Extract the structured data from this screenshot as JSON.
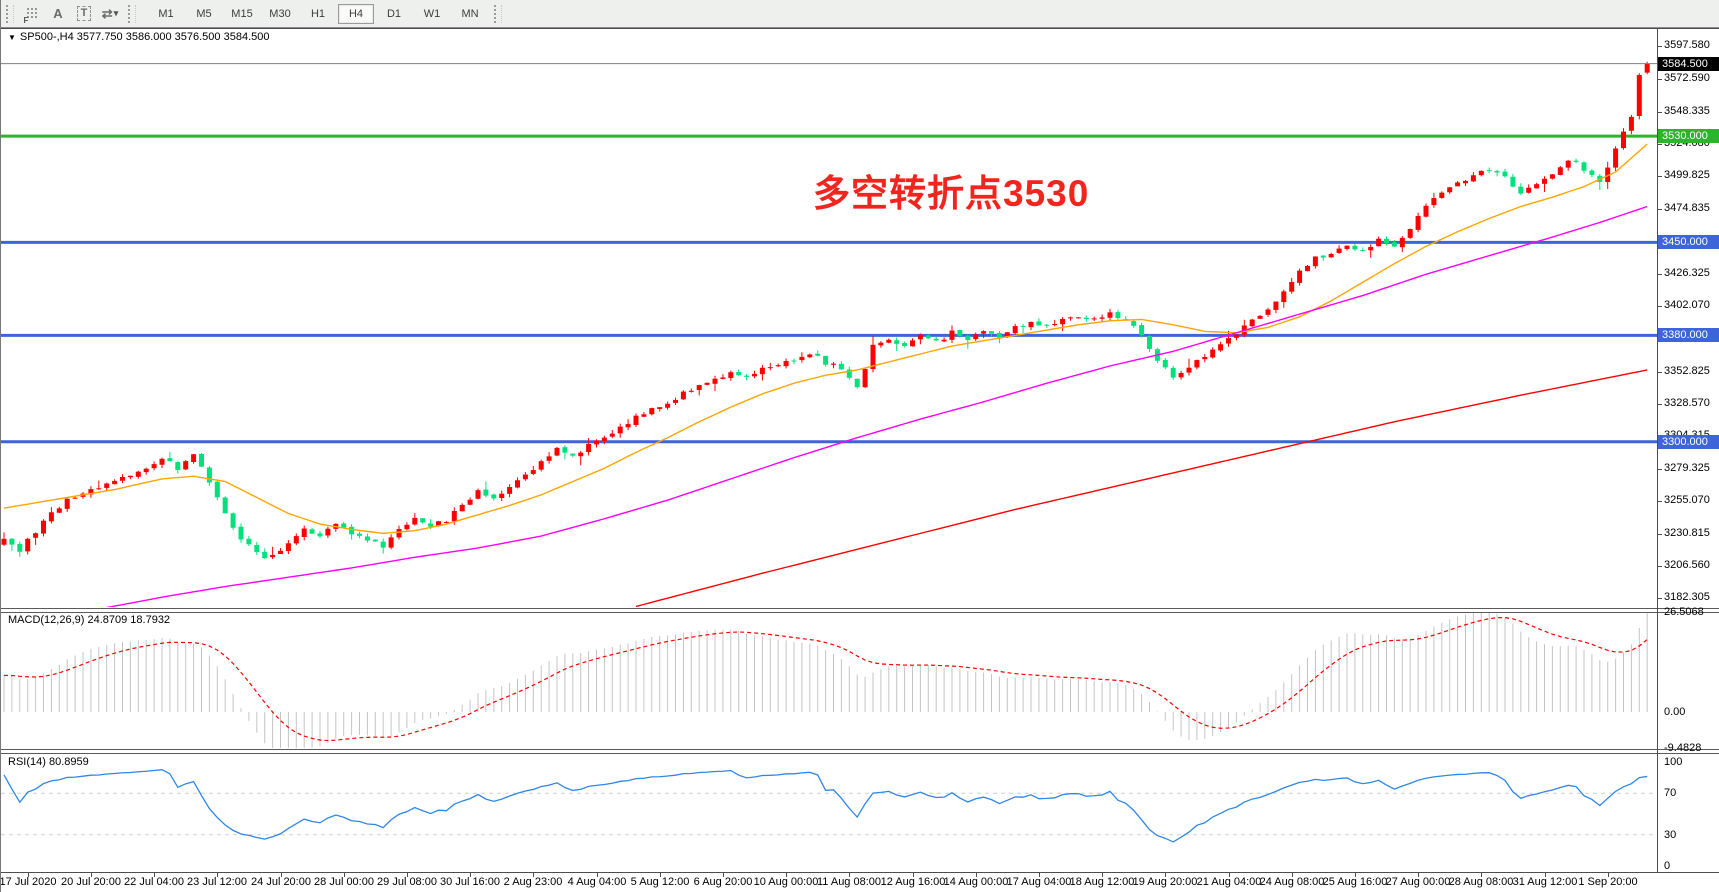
{
  "toolbar": {
    "timeframes": [
      "M1",
      "M5",
      "M15",
      "M30",
      "H1",
      "H4",
      "D1",
      "W1",
      "MN"
    ],
    "active_timeframe": "H4",
    "icons": {
      "grid_f": "F",
      "arrow_tool": "A",
      "text_tool": "T",
      "indicator_arrows": "⇄",
      "caret": "▾"
    }
  },
  "symbol_line": {
    "caret": "▼",
    "text": "SP500-,H4  3577.750 3586.000 3576.500 3584.500"
  },
  "annotation": {
    "text": "多空转折点3530",
    "color": "#f2241e"
  },
  "indicator_macd": {
    "label": "MACD(12,26,9) 24.8709 18.7932"
  },
  "indicator_rsi": {
    "label": "RSI(14) 80.8959"
  },
  "chart_data": {
    "type": "candlestick",
    "symbol": "SP500-",
    "timeframe": "H4",
    "current_bar": {
      "open": 3577.75,
      "high": 3586.0,
      "low": 3576.5,
      "close": 3584.5
    },
    "bars_total": 209,
    "colors": {
      "bull": "#fe0000",
      "bear": "#00e17c",
      "ma_fast": "#ffa500",
      "ma_mid": "#ff00ff",
      "ma_slow": "#ff0000",
      "macd_hist": "#c4c4c4",
      "macd_signal": "#ff0000",
      "rsi": "#2e86e8",
      "hline_blue": "#3d64d8",
      "hline_green": "#2cb52c",
      "bid_line": "#808080",
      "level_dash": "#cfcfcf"
    },
    "price_axis": {
      "range_top": 3610.59,
      "range_bottom": 3175.59,
      "ticks": [
        3597.58,
        3572.59,
        3548.335,
        3524.08,
        3499.825,
        3474.835,
        3426.325,
        3402.07,
        3377.815,
        3352.825,
        3328.57,
        3304.315,
        3279.325,
        3255.07,
        3230.815,
        3206.56,
        3182.305
      ]
    },
    "hlines": [
      {
        "name": "bid-line",
        "value": 3584.5,
        "label": "3584.500",
        "color": "#808080",
        "width": 1,
        "badge_bg": "#000000"
      },
      {
        "name": "pivot-line-3530",
        "value": 3530,
        "label": "3530.000",
        "color": "#2cb52c",
        "width": 3,
        "badge_bg": "#2cb52c"
      },
      {
        "name": "level-line-3450",
        "value": 3450,
        "label": "3450.000",
        "color": "#3d64d8",
        "width": 3,
        "badge_bg": "#3d64d8"
      },
      {
        "name": "level-line-3380",
        "value": 3380,
        "label": "3380.000",
        "color": "#3d64d8",
        "width": 3,
        "badge_bg": "#3d64d8"
      },
      {
        "name": "level-line-3300",
        "value": 3300,
        "label": "3300.000",
        "color": "#3d64d8",
        "width": 3,
        "badge_bg": "#3d64d8"
      }
    ],
    "close_keyframes": [
      [
        0,
        3226
      ],
      [
        2,
        3218
      ],
      [
        5,
        3240
      ],
      [
        8,
        3256
      ],
      [
        11,
        3264
      ],
      [
        14,
        3272
      ],
      [
        17,
        3278
      ],
      [
        20,
        3288
      ],
      [
        22,
        3280
      ],
      [
        24,
        3291
      ],
      [
        26,
        3270
      ],
      [
        28,
        3245
      ],
      [
        30,
        3228
      ],
      [
        33,
        3211
      ],
      [
        36,
        3222
      ],
      [
        38,
        3235
      ],
      [
        40,
        3229
      ],
      [
        42,
        3238
      ],
      [
        44,
        3231
      ],
      [
        46,
        3227
      ],
      [
        48,
        3220
      ],
      [
        50,
        3234
      ],
      [
        52,
        3244
      ],
      [
        54,
        3236
      ],
      [
        56,
        3241
      ],
      [
        58,
        3252
      ],
      [
        60,
        3264
      ],
      [
        62,
        3257
      ],
      [
        64,
        3266
      ],
      [
        66,
        3276
      ],
      [
        68,
        3284
      ],
      [
        70,
        3294
      ],
      [
        72,
        3289
      ],
      [
        74,
        3298
      ],
      [
        76,
        3304
      ],
      [
        78,
        3310
      ],
      [
        80,
        3318
      ],
      [
        82,
        3324
      ],
      [
        84,
        3330
      ],
      [
        86,
        3336
      ],
      [
        88,
        3342
      ],
      [
        90,
        3346
      ],
      [
        92,
        3352
      ],
      [
        94,
        3347
      ],
      [
        96,
        3354
      ],
      [
        98,
        3358
      ],
      [
        100,
        3361
      ],
      [
        102,
        3367
      ],
      [
        104,
        3359
      ],
      [
        106,
        3356
      ],
      [
        108,
        3341
      ],
      [
        110,
        3372
      ],
      [
        112,
        3375
      ],
      [
        114,
        3371
      ],
      [
        116,
        3379
      ],
      [
        118,
        3375
      ],
      [
        120,
        3382
      ],
      [
        122,
        3377
      ],
      [
        124,
        3383
      ],
      [
        126,
        3379
      ],
      [
        128,
        3386
      ],
      [
        130,
        3390
      ],
      [
        132,
        3387
      ],
      [
        134,
        3392
      ],
      [
        136,
        3395
      ],
      [
        138,
        3393
      ],
      [
        140,
        3397
      ],
      [
        142,
        3391
      ],
      [
        144,
        3381
      ],
      [
        146,
        3362
      ],
      [
        148,
        3349
      ],
      [
        150,
        3356
      ],
      [
        152,
        3364
      ],
      [
        154,
        3373
      ],
      [
        156,
        3381
      ],
      [
        158,
        3391
      ],
      [
        160,
        3399
      ],
      [
        162,
        3413
      ],
      [
        164,
        3428
      ],
      [
        166,
        3438
      ],
      [
        168,
        3442
      ],
      [
        170,
        3447
      ],
      [
        172,
        3443
      ],
      [
        174,
        3452
      ],
      [
        176,
        3448
      ],
      [
        178,
        3461
      ],
      [
        180,
        3478
      ],
      [
        182,
        3489
      ],
      [
        184,
        3495
      ],
      [
        186,
        3501
      ],
      [
        188,
        3506
      ],
      [
        190,
        3498
      ],
      [
        192,
        3486
      ],
      [
        194,
        3495
      ],
      [
        196,
        3503
      ],
      [
        198,
        3513
      ],
      [
        200,
        3505
      ],
      [
        202,
        3496
      ],
      [
        203,
        3505
      ],
      [
        204,
        3520
      ],
      [
        205,
        3532
      ],
      [
        206,
        3545
      ],
      [
        207,
        3576
      ],
      [
        208,
        3584.5
      ]
    ],
    "ma_fast_keyframes": [
      [
        0,
        3250
      ],
      [
        8,
        3258
      ],
      [
        14,
        3264
      ],
      [
        20,
        3272
      ],
      [
        24,
        3274
      ],
      [
        28,
        3270
      ],
      [
        32,
        3258
      ],
      [
        36,
        3246
      ],
      [
        40,
        3238
      ],
      [
        44,
        3234
      ],
      [
        48,
        3231
      ],
      [
        52,
        3233
      ],
      [
        56,
        3238
      ],
      [
        60,
        3245
      ],
      [
        64,
        3252
      ],
      [
        68,
        3260
      ],
      [
        72,
        3270
      ],
      [
        76,
        3280
      ],
      [
        80,
        3292
      ],
      [
        84,
        3303
      ],
      [
        88,
        3315
      ],
      [
        92,
        3326
      ],
      [
        96,
        3336
      ],
      [
        100,
        3344
      ],
      [
        104,
        3350
      ],
      [
        108,
        3354
      ],
      [
        112,
        3360
      ],
      [
        116,
        3366
      ],
      [
        120,
        3372
      ],
      [
        124,
        3376
      ],
      [
        128,
        3380
      ],
      [
        132,
        3384
      ],
      [
        136,
        3388
      ],
      [
        140,
        3391
      ],
      [
        144,
        3392
      ],
      [
        148,
        3388
      ],
      [
        152,
        3383
      ],
      [
        156,
        3382
      ],
      [
        160,
        3386
      ],
      [
        164,
        3394
      ],
      [
        168,
        3406
      ],
      [
        172,
        3420
      ],
      [
        176,
        3434
      ],
      [
        180,
        3447
      ],
      [
        184,
        3458
      ],
      [
        188,
        3468
      ],
      [
        192,
        3477
      ],
      [
        196,
        3484
      ],
      [
        200,
        3492
      ],
      [
        204,
        3503
      ],
      [
        208,
        3524
      ]
    ],
    "ma_mid_keyframes": [
      [
        4,
        3163
      ],
      [
        12,
        3174
      ],
      [
        20,
        3183
      ],
      [
        28,
        3191
      ],
      [
        36,
        3198
      ],
      [
        44,
        3205
      ],
      [
        52,
        3213
      ],
      [
        60,
        3220
      ],
      [
        68,
        3229
      ],
      [
        76,
        3242
      ],
      [
        84,
        3256
      ],
      [
        92,
        3272
      ],
      [
        100,
        3288
      ],
      [
        108,
        3303
      ],
      [
        116,
        3317
      ],
      [
        124,
        3330
      ],
      [
        132,
        3344
      ],
      [
        140,
        3357
      ],
      [
        148,
        3368
      ],
      [
        156,
        3382
      ],
      [
        164,
        3396
      ],
      [
        172,
        3410
      ],
      [
        180,
        3426
      ],
      [
        188,
        3440
      ],
      [
        196,
        3454
      ],
      [
        202,
        3465
      ],
      [
        208,
        3477
      ]
    ],
    "ma_slow_keyframes": [
      [
        80,
        3176
      ],
      [
        96,
        3201
      ],
      [
        112,
        3225
      ],
      [
        128,
        3249
      ],
      [
        144,
        3271
      ],
      [
        160,
        3293
      ],
      [
        176,
        3315
      ],
      [
        192,
        3335
      ],
      [
        208,
        3354
      ]
    ],
    "macd": {
      "params": "12,26,9",
      "value": 24.8709,
      "signal_value": 18.7932,
      "axis_max": 26.5068,
      "axis_zero": 0.0,
      "axis_min": -9.4828,
      "axis_labels": [
        "26.5068",
        "0.00",
        "-9.4828"
      ]
    },
    "rsi": {
      "period": 14,
      "value": 80.8959,
      "axis_labels": [
        "100",
        "70",
        "30",
        "0"
      ],
      "levels": [
        70,
        30
      ],
      "range": [
        0,
        100
      ]
    },
    "time_axis": [
      {
        "text": "17 Jul 2020",
        "bar": 3
      },
      {
        "text": "20 Jul 20:00",
        "bar": 11
      },
      {
        "text": "22 Jul 04:00",
        "bar": 19
      },
      {
        "text": "23 Jul 12:00",
        "bar": 27
      },
      {
        "text": "24 Jul 20:00",
        "bar": 35
      },
      {
        "text": "28 Jul 00:00",
        "bar": 43
      },
      {
        "text": "29 Jul 08:00",
        "bar": 51
      },
      {
        "text": "30 Jul 16:00",
        "bar": 59
      },
      {
        "text": "2 Aug 23:00",
        "bar": 67
      },
      {
        "text": "4 Aug 04:00",
        "bar": 75
      },
      {
        "text": "5 Aug 12:00",
        "bar": 83
      },
      {
        "text": "6 Aug 20:00",
        "bar": 91
      },
      {
        "text": "10 Aug 00:00",
        "bar": 99
      },
      {
        "text": "11 Aug 08:00",
        "bar": 107
      },
      {
        "text": "12 Aug 16:00",
        "bar": 115
      },
      {
        "text": "14 Aug 00:00",
        "bar": 123
      },
      {
        "text": "17 Aug 04:00",
        "bar": 131
      },
      {
        "text": "18 Aug 12:00",
        "bar": 139
      },
      {
        "text": "19 Aug 20:00",
        "bar": 147
      },
      {
        "text": "21 Aug 04:00",
        "bar": 155
      },
      {
        "text": "24 Aug 08:00",
        "bar": 163
      },
      {
        "text": "25 Aug 16:00",
        "bar": 171
      },
      {
        "text": "27 Aug 00:00",
        "bar": 179
      },
      {
        "text": "28 Aug 08:00",
        "bar": 187
      },
      {
        "text": "31 Aug 12:00",
        "bar": 195
      },
      {
        "text": "1 Sep 20:00",
        "bar": 203
      }
    ]
  }
}
